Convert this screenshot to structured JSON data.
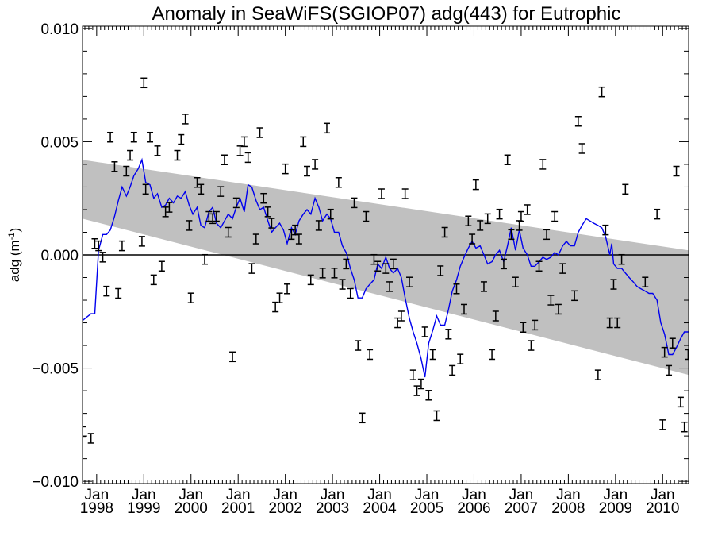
{
  "chart_data": {
    "type": "scatter",
    "title": "Anomaly in SeaWiFS(SGIOP07) adg(443) for Eutrophic",
    "ylabel_base": "adg (m",
    "ylabel_sup": "-1",
    "ylabel_close": ")",
    "xlabel": "",
    "xlim": [
      1997.7,
      2010.55
    ],
    "ylim": [
      -0.0101,
      0.0101
    ],
    "y_ticks": [
      {
        "value": 0.01,
        "label": "0.010"
      },
      {
        "value": 0.005,
        "label": "0.005"
      },
      {
        "value": 0.0,
        "label": "0.000"
      },
      {
        "value": -0.005,
        "label": "−0.005"
      },
      {
        "value": -0.01,
        "label": "−0.010"
      }
    ],
    "x_ticks": [
      {
        "value": 1998,
        "month": "Jan",
        "year": "1998"
      },
      {
        "value": 1999,
        "month": "Jan",
        "year": "1999"
      },
      {
        "value": 2000,
        "month": "Jan",
        "year": "2000"
      },
      {
        "value": 2001,
        "month": "Jan",
        "year": "2001"
      },
      {
        "value": 2002,
        "month": "Jan",
        "year": "2002"
      },
      {
        "value": 2003,
        "month": "Jan",
        "year": "2003"
      },
      {
        "value": 2004,
        "month": "Jan",
        "year": "2004"
      },
      {
        "value": 2005,
        "month": "Jan",
        "year": "2005"
      },
      {
        "value": 2006,
        "month": "Jan",
        "year": "2006"
      },
      {
        "value": 2007,
        "month": "Jan",
        "year": "2007"
      },
      {
        "value": 2008,
        "month": "Jan",
        "year": "2008"
      },
      {
        "value": 2009,
        "month": "Jan",
        "year": "2009"
      },
      {
        "value": 2010,
        "month": "Jan",
        "year": "2010"
      }
    ],
    "zero_line": 0.0,
    "trend_band": {
      "x": [
        1997.7,
        2010.55
      ],
      "upper": [
        0.0042,
        0.0002
      ],
      "lower": [
        0.0016,
        -0.0053
      ]
    },
    "points": [
      [
        1997.7,
        -0.0078
      ],
      [
        1997.88,
        -0.0081
      ],
      [
        1997.96,
        0.0005
      ],
      [
        1998.04,
        0.0004
      ],
      [
        1998.13,
        -0.0001
      ],
      [
        1998.21,
        -0.0016
      ],
      [
        1998.29,
        0.0052
      ],
      [
        1998.38,
        0.0039
      ],
      [
        1998.46,
        -0.0017
      ],
      [
        1998.54,
        0.0004
      ],
      [
        1998.63,
        0.0037
      ],
      [
        1998.71,
        0.0044
      ],
      [
        1998.79,
        0.0052
      ],
      [
        1998.96,
        0.0006
      ],
      [
        1999.0,
        0.0076
      ],
      [
        1999.04,
        0.0029
      ],
      [
        1999.13,
        0.0052
      ],
      [
        1999.21,
        -0.0011
      ],
      [
        1999.29,
        0.0046
      ],
      [
        1999.38,
        -0.0005
      ],
      [
        1999.46,
        0.0019
      ],
      [
        1999.54,
        0.0021
      ],
      [
        1999.71,
        0.0044
      ],
      [
        1999.79,
        0.0051
      ],
      [
        1999.88,
        0.006
      ],
      [
        1999.96,
        0.0013
      ],
      [
        2000.0,
        -0.0019
      ],
      [
        2000.13,
        0.0032
      ],
      [
        2000.21,
        0.0029
      ],
      [
        2000.29,
        -0.0002
      ],
      [
        2000.38,
        0.0017
      ],
      [
        2000.46,
        0.0016
      ],
      [
        2000.54,
        0.0017
      ],
      [
        2000.63,
        0.0028
      ],
      [
        2000.71,
        0.0042
      ],
      [
        2000.79,
        0.001
      ],
      [
        2000.88,
        -0.0045
      ],
      [
        2000.96,
        0.0023
      ],
      [
        2001.04,
        0.0046
      ],
      [
        2001.13,
        0.005
      ],
      [
        2001.21,
        0.0043
      ],
      [
        2001.29,
        -0.0006
      ],
      [
        2001.38,
        0.0007
      ],
      [
        2001.46,
        0.0054
      ],
      [
        2001.54,
        0.0025
      ],
      [
        2001.63,
        0.0019
      ],
      [
        2001.71,
        0.0014
      ],
      [
        2001.79,
        -0.0023
      ],
      [
        2001.88,
        -0.0019
      ],
      [
        2002.0,
        0.0038
      ],
      [
        2002.04,
        -0.0015
      ],
      [
        2002.13,
        0.0009
      ],
      [
        2002.21,
        0.0011
      ],
      [
        2002.29,
        0.0007
      ],
      [
        2002.38,
        0.005
      ],
      [
        2002.46,
        0.0037
      ],
      [
        2002.54,
        -0.0011
      ],
      [
        2002.63,
        0.004
      ],
      [
        2002.71,
        0.0013
      ],
      [
        2002.79,
        -0.0008
      ],
      [
        2002.88,
        0.0056
      ],
      [
        2002.96,
        0.0018
      ],
      [
        2003.04,
        -0.0008
      ],
      [
        2003.13,
        0.0032
      ],
      [
        2003.21,
        -0.0013
      ],
      [
        2003.29,
        -0.0004
      ],
      [
        2003.38,
        -0.0017
      ],
      [
        2003.46,
        0.0023
      ],
      [
        2003.54,
        -0.004
      ],
      [
        2003.63,
        -0.0072
      ],
      [
        2003.71,
        0.0017
      ],
      [
        2003.79,
        -0.0044
      ],
      [
        2003.88,
        -0.0002
      ],
      [
        2003.96,
        -0.0005
      ],
      [
        2004.04,
        0.0027
      ],
      [
        2004.13,
        -0.0006
      ],
      [
        2004.21,
        -0.0014
      ],
      [
        2004.29,
        -0.0004
      ],
      [
        2004.38,
        -0.003
      ],
      [
        2004.46,
        -0.0027
      ],
      [
        2004.54,
        0.0027
      ],
      [
        2004.63,
        -0.0012
      ],
      [
        2004.71,
        -0.0053
      ],
      [
        2004.79,
        -0.006
      ],
      [
        2004.88,
        -0.0057
      ],
      [
        2004.96,
        -0.0034
      ],
      [
        2005.04,
        -0.0062
      ],
      [
        2005.13,
        -0.0044
      ],
      [
        2005.21,
        -0.0071
      ],
      [
        2005.29,
        -0.0007
      ],
      [
        2005.38,
        0.001
      ],
      [
        2005.46,
        -0.0035
      ],
      [
        2005.54,
        -0.0051
      ],
      [
        2005.63,
        -0.0015
      ],
      [
        2005.71,
        -0.0046
      ],
      [
        2005.79,
        -0.0024
      ],
      [
        2005.88,
        0.0015
      ],
      [
        2005.96,
        0.0007
      ],
      [
        2006.04,
        0.0031
      ],
      [
        2006.13,
        0.0013
      ],
      [
        2006.21,
        -0.0014
      ],
      [
        2006.29,
        0.0016
      ],
      [
        2006.38,
        -0.0044
      ],
      [
        2006.46,
        -0.0027
      ],
      [
        2006.54,
        0.0018
      ],
      [
        2006.63,
        -0.0004
      ],
      [
        2006.71,
        0.0042
      ],
      [
        2006.79,
        0.0009
      ],
      [
        2006.88,
        -0.0012
      ],
      [
        2006.96,
        0.0013
      ],
      [
        2007.0,
        0.0017
      ],
      [
        2007.04,
        -0.0032
      ],
      [
        2007.13,
        0.002
      ],
      [
        2007.21,
        -0.004
      ],
      [
        2007.29,
        -0.0031
      ],
      [
        2007.38,
        -0.0005
      ],
      [
        2007.46,
        0.004
      ],
      [
        2007.54,
        0.0009
      ],
      [
        2007.63,
        -0.002
      ],
      [
        2007.71,
        0.0017
      ],
      [
        2007.79,
        -0.0024
      ],
      [
        2007.88,
        -0.0006
      ],
      [
        2008.13,
        -0.0018
      ],
      [
        2008.21,
        0.0059
      ],
      [
        2008.29,
        0.0047
      ],
      [
        2008.63,
        -0.0053
      ],
      [
        2008.71,
        0.0072
      ],
      [
        2008.79,
        0.0011
      ],
      [
        2008.88,
        -0.003
      ],
      [
        2008.96,
        -0.0013
      ],
      [
        2009.04,
        -0.003
      ],
      [
        2009.13,
        -0.0002
      ],
      [
        2009.21,
        0.0029
      ],
      [
        2009.63,
        -0.0012
      ],
      [
        2009.88,
        0.0018
      ],
      [
        2010.0,
        -0.0075
      ],
      [
        2010.04,
        -0.0043
      ],
      [
        2010.13,
        -0.0051
      ],
      [
        2010.21,
        -0.0039
      ],
      [
        2010.29,
        0.0037
      ],
      [
        2010.38,
        -0.0065
      ],
      [
        2010.46,
        -0.0076
      ],
      [
        2010.54,
        -0.0044
      ]
    ],
    "smooth_line": [
      [
        1997.7,
        -0.0029
      ],
      [
        1997.88,
        -0.0026
      ],
      [
        1997.96,
        -0.0026
      ],
      [
        1998.04,
        0.0002
      ],
      [
        1998.13,
        0.0009
      ],
      [
        1998.21,
        0.0009
      ],
      [
        1998.29,
        0.0011
      ],
      [
        1998.38,
        0.0017
      ],
      [
        1998.46,
        0.0024
      ],
      [
        1998.54,
        0.003
      ],
      [
        1998.63,
        0.0026
      ],
      [
        1998.71,
        0.003
      ],
      [
        1998.79,
        0.0035
      ],
      [
        1998.88,
        0.0038
      ],
      [
        1998.96,
        0.0042
      ],
      [
        1999.04,
        0.0032
      ],
      [
        1999.13,
        0.0031
      ],
      [
        1999.21,
        0.0025
      ],
      [
        1999.29,
        0.0027
      ],
      [
        1999.38,
        0.0021
      ],
      [
        1999.46,
        0.0022
      ],
      [
        1999.54,
        0.0025
      ],
      [
        1999.63,
        0.0023
      ],
      [
        1999.71,
        0.0026
      ],
      [
        1999.79,
        0.0025
      ],
      [
        1999.88,
        0.0028
      ],
      [
        1999.96,
        0.0022
      ],
      [
        2000.04,
        0.0018
      ],
      [
        2000.13,
        0.0021
      ],
      [
        2000.21,
        0.0013
      ],
      [
        2000.29,
        0.0012
      ],
      [
        2000.38,
        0.0019
      ],
      [
        2000.46,
        0.0021
      ],
      [
        2000.54,
        0.0014
      ],
      [
        2000.63,
        0.0012
      ],
      [
        2000.71,
        0.0015
      ],
      [
        2000.79,
        0.0018
      ],
      [
        2000.88,
        0.0016
      ],
      [
        2000.96,
        0.0021
      ],
      [
        2001.04,
        0.0025
      ],
      [
        2001.13,
        0.0019
      ],
      [
        2001.21,
        0.0031
      ],
      [
        2001.29,
        0.003
      ],
      [
        2001.38,
        0.0024
      ],
      [
        2001.46,
        0.002
      ],
      [
        2001.54,
        0.0021
      ],
      [
        2001.63,
        0.0015
      ],
      [
        2001.71,
        0.001
      ],
      [
        2001.79,
        0.0012
      ],
      [
        2001.88,
        0.0014
      ],
      [
        2001.96,
        0.0011
      ],
      [
        2002.04,
        0.0005
      ],
      [
        2002.13,
        0.0012
      ],
      [
        2002.21,
        0.0009
      ],
      [
        2002.29,
        0.0015
      ],
      [
        2002.38,
        0.0018
      ],
      [
        2002.46,
        0.002
      ],
      [
        2002.54,
        0.0018
      ],
      [
        2002.63,
        0.0025
      ],
      [
        2002.71,
        0.0021
      ],
      [
        2002.79,
        0.0015
      ],
      [
        2002.88,
        0.0018
      ],
      [
        2002.96,
        0.0016
      ],
      [
        2003.04,
        0.001
      ],
      [
        2003.13,
        0.001
      ],
      [
        2003.21,
        0.0004
      ],
      [
        2003.29,
        0.0001
      ],
      [
        2003.38,
        -0.0006
      ],
      [
        2003.46,
        -0.0011
      ],
      [
        2003.54,
        -0.0019
      ],
      [
        2003.63,
        -0.0019
      ],
      [
        2003.71,
        -0.0015
      ],
      [
        2003.79,
        -0.0013
      ],
      [
        2003.88,
        -0.0011
      ],
      [
        2003.96,
        -0.0004
      ],
      [
        2004.04,
        -0.0006
      ],
      [
        2004.13,
        -0.0001
      ],
      [
        2004.21,
        -0.0006
      ],
      [
        2004.29,
        -0.0008
      ],
      [
        2004.38,
        -0.0006
      ],
      [
        2004.46,
        -0.001
      ],
      [
        2004.54,
        -0.0019
      ],
      [
        2004.63,
        -0.0028
      ],
      [
        2004.71,
        -0.0034
      ],
      [
        2004.79,
        -0.0039
      ],
      [
        2004.88,
        -0.0046
      ],
      [
        2004.96,
        -0.0054
      ],
      [
        2005.04,
        -0.0039
      ],
      [
        2005.13,
        -0.0033
      ],
      [
        2005.21,
        -0.0027
      ],
      [
        2005.29,
        -0.0031
      ],
      [
        2005.38,
        -0.0031
      ],
      [
        2005.46,
        -0.0024
      ],
      [
        2005.54,
        -0.0016
      ],
      [
        2005.63,
        -0.0011
      ],
      [
        2005.71,
        -0.0005
      ],
      [
        2005.79,
        -0.0001
      ],
      [
        2005.88,
        0.0003
      ],
      [
        2005.96,
        0.0006
      ],
      [
        2006.04,
        0.0003
      ],
      [
        2006.13,
        0.0004
      ],
      [
        2006.21,
        0.0
      ],
      [
        2006.29,
        -0.0004
      ],
      [
        2006.38,
        -0.0003
      ],
      [
        2006.46,
        0.0
      ],
      [
        2006.54,
        0.0002
      ],
      [
        2006.63,
        -0.0003
      ],
      [
        2006.71,
        0.0004
      ],
      [
        2006.79,
        0.0012
      ],
      [
        2006.88,
        0.0002
      ],
      [
        2006.96,
        0.0011
      ],
      [
        2007.04,
        0.0003
      ],
      [
        2007.13,
        0.0
      ],
      [
        2007.21,
        -0.0005
      ],
      [
        2007.29,
        -0.0005
      ],
      [
        2007.38,
        -0.0003
      ],
      [
        2007.46,
        -0.0001
      ],
      [
        2007.54,
        -0.0002
      ],
      [
        2007.63,
        -0.0001
      ],
      [
        2007.71,
        0.0001
      ],
      [
        2007.79,
        0.0
      ],
      [
        2007.88,
        0.0004
      ],
      [
        2007.96,
        0.0006
      ],
      [
        2008.04,
        0.0004
      ],
      [
        2008.13,
        0.0004
      ],
      [
        2008.21,
        0.001
      ],
      [
        2008.29,
        0.0013
      ],
      [
        2008.38,
        0.0016
      ],
      [
        2008.46,
        0.0015
      ],
      [
        2008.54,
        0.0014
      ],
      [
        2008.63,
        0.0013
      ],
      [
        2008.71,
        0.0012
      ],
      [
        2008.79,
        0.0008
      ],
      [
        2008.88,
        0.0
      ],
      [
        2008.92,
        0.0005
      ],
      [
        2008.96,
        -0.0004
      ],
      [
        2009.04,
        -0.0006
      ],
      [
        2009.13,
        -0.0006
      ],
      [
        2009.21,
        -0.0008
      ],
      [
        2009.29,
        -0.001
      ],
      [
        2009.38,
        -0.0012
      ],
      [
        2009.46,
        -0.0014
      ],
      [
        2009.54,
        -0.0015
      ],
      [
        2009.63,
        -0.0016
      ],
      [
        2009.71,
        -0.0017
      ],
      [
        2009.79,
        -0.0017
      ],
      [
        2009.88,
        -0.002
      ],
      [
        2009.96,
        -0.003
      ],
      [
        2010.04,
        -0.0035
      ],
      [
        2010.13,
        -0.0044
      ],
      [
        2010.21,
        -0.0044
      ],
      [
        2010.29,
        -0.0041
      ],
      [
        2010.38,
        -0.0037
      ],
      [
        2010.46,
        -0.0034
      ],
      [
        2010.55,
        -0.0034
      ]
    ],
    "colors": {
      "band": "#c0c0c0",
      "smooth_line": "#0000ee",
      "points": "#000000",
      "zero_line": "#000000",
      "axes": "#000000"
    },
    "grid": false,
    "legend": "none"
  }
}
